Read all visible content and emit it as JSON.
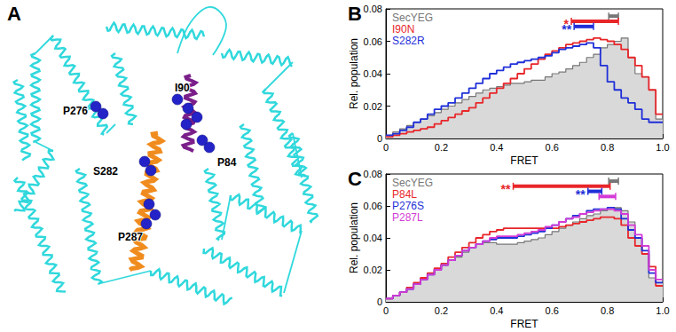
{
  "structure": {
    "title": "A",
    "labels": [
      "P276",
      "I90",
      "S282",
      "P84",
      "P287"
    ]
  },
  "chart_data": [
    {
      "type": "histogram",
      "title": "B",
      "x_label": "FRET",
      "y_label": "Rel. population",
      "bins": [
        0,
        0.025,
        0.05,
        0.075,
        0.1,
        0.125,
        0.15,
        0.175,
        0.2,
        0.225,
        0.25,
        0.275,
        0.3,
        0.325,
        0.35,
        0.375,
        0.4,
        0.425,
        0.45,
        0.475,
        0.5,
        0.525,
        0.55,
        0.575,
        0.6,
        0.625,
        0.65,
        0.675,
        0.7,
        0.725,
        0.75,
        0.775,
        0.8,
        0.825,
        0.85,
        0.875,
        0.9,
        0.925,
        0.95,
        0.975,
        1
      ],
      "xlim": [
        0,
        1
      ],
      "xticks": [
        0,
        0.2,
        0.4,
        0.6,
        0.8,
        {
          "value": 1,
          "label": "1.0"
        }
      ],
      "ylim": [
        0,
        0.08
      ],
      "yticks": [
        0,
        0.02,
        0.04,
        0.06,
        0.08
      ],
      "grid": false,
      "legend": "upper-left",
      "series": [
        {
          "name": "SecYEG",
          "type": "area",
          "color": "#777777",
          "error_bar": [
            0.805,
            0.84
          ],
          "values": [
            0.002,
            0.004,
            0.006,
            0.008,
            0.01,
            0.012,
            0.014,
            0.016,
            0.018,
            0.02,
            0.022,
            0.024,
            0.026,
            0.028,
            0.03,
            0.031,
            0.032,
            0.033,
            0.034,
            0.034,
            0.035,
            0.036,
            0.036,
            0.038,
            0.04,
            0.041,
            0.043,
            0.045,
            0.047,
            0.05,
            0.052,
            0.056,
            0.058,
            0.06,
            0.062,
            0.05,
            0.04,
            0.038,
            0.03,
            0.012
          ]
        },
        {
          "name": "I90N",
          "type": "step",
          "color": "#e8262a",
          "error_bar": [
            0.67,
            0.84
          ],
          "significance": "*",
          "values": [
            0.001,
            0.002,
            0.003,
            0.004,
            0.005,
            0.006,
            0.007,
            0.009,
            0.011,
            0.013,
            0.015,
            0.017,
            0.019,
            0.022,
            0.025,
            0.028,
            0.031,
            0.034,
            0.037,
            0.04,
            0.043,
            0.046,
            0.049,
            0.052,
            0.054,
            0.056,
            0.058,
            0.059,
            0.06,
            0.061,
            0.062,
            0.061,
            0.06,
            0.058,
            0.055,
            0.05,
            0.045,
            0.038,
            0.03,
            0.015
          ]
        },
        {
          "name": "S282R",
          "type": "step",
          "color": "#1f2fd8",
          "error_bar": [
            0.68,
            0.75
          ],
          "significance": "**",
          "values": [
            0.002,
            0.003,
            0.005,
            0.007,
            0.01,
            0.012,
            0.015,
            0.018,
            0.02,
            0.022,
            0.025,
            0.028,
            0.031,
            0.034,
            0.037,
            0.04,
            0.042,
            0.044,
            0.046,
            0.047,
            0.048,
            0.049,
            0.05,
            0.051,
            0.053,
            0.055,
            0.056,
            0.057,
            0.058,
            0.059,
            0.056,
            0.045,
            0.035,
            0.03,
            0.025,
            0.022,
            0.018,
            0.012,
            0.01,
            0.01
          ]
        }
      ]
    },
    {
      "type": "histogram",
      "title": "C",
      "x_label": "FRET",
      "y_label": "Rel. population",
      "bins": [
        0,
        0.025,
        0.05,
        0.075,
        0.1,
        0.125,
        0.15,
        0.175,
        0.2,
        0.225,
        0.25,
        0.275,
        0.3,
        0.325,
        0.35,
        0.375,
        0.4,
        0.425,
        0.45,
        0.475,
        0.5,
        0.525,
        0.55,
        0.575,
        0.6,
        0.625,
        0.65,
        0.675,
        0.7,
        0.725,
        0.75,
        0.775,
        0.8,
        0.825,
        0.85,
        0.875,
        0.9,
        0.925,
        0.95,
        0.975,
        1
      ],
      "xlim": [
        0,
        1
      ],
      "xticks": [
        0,
        0.2,
        0.4,
        0.6,
        0.8,
        {
          "value": 1,
          "label": "1.0"
        }
      ],
      "ylim": [
        0,
        0.08
      ],
      "yticks": [
        0,
        0.02,
        0.04,
        0.06,
        0.08
      ],
      "grid": false,
      "legend": "upper-left",
      "series": [
        {
          "name": "SecYEG",
          "type": "area",
          "color": "#777777",
          "error_bar": [
            0.805,
            0.84
          ],
          "values": [
            0.002,
            0.004,
            0.006,
            0.008,
            0.011,
            0.014,
            0.017,
            0.02,
            0.023,
            0.026,
            0.028,
            0.031,
            0.034,
            0.036,
            0.037,
            0.037,
            0.036,
            0.036,
            0.036,
            0.037,
            0.038,
            0.039,
            0.04,
            0.042,
            0.044,
            0.046,
            0.048,
            0.05,
            0.052,
            0.054,
            0.055,
            0.057,
            0.058,
            0.059,
            0.057,
            0.05,
            0.04,
            0.03,
            0.015,
            0.012
          ]
        },
        {
          "name": "P84L",
          "type": "step",
          "color": "#e8262a",
          "error_bar": [
            0.46,
            0.81
          ],
          "significance": "**",
          "values": [
            0.002,
            0.004,
            0.006,
            0.009,
            0.012,
            0.015,
            0.018,
            0.021,
            0.024,
            0.028,
            0.031,
            0.034,
            0.037,
            0.04,
            0.042,
            0.044,
            0.045,
            0.046,
            0.046,
            0.046,
            0.046,
            0.046,
            0.046,
            0.046,
            0.046,
            0.047,
            0.048,
            0.049,
            0.05,
            0.051,
            0.052,
            0.053,
            0.053,
            0.052,
            0.048,
            0.04,
            0.035,
            0.03,
            0.022,
            0.01
          ]
        },
        {
          "name": "P276S",
          "type": "step",
          "color": "#1f2fd8",
          "error_bar": [
            0.73,
            0.78
          ],
          "significance": "**",
          "values": [
            0.002,
            0.004,
            0.006,
            0.008,
            0.011,
            0.014,
            0.017,
            0.02,
            0.023,
            0.026,
            0.029,
            0.032,
            0.034,
            0.036,
            0.038,
            0.039,
            0.04,
            0.04,
            0.04,
            0.041,
            0.042,
            0.043,
            0.044,
            0.046,
            0.048,
            0.05,
            0.052,
            0.054,
            0.055,
            0.057,
            0.058,
            0.058,
            0.059,
            0.058,
            0.052,
            0.045,
            0.04,
            0.032,
            0.018,
            0.012
          ]
        },
        {
          "name": "P287L",
          "type": "step",
          "color": "#d43bd6",
          "error_bar": [
            0.77,
            0.83
          ],
          "values": [
            0.002,
            0.004,
            0.006,
            0.008,
            0.011,
            0.014,
            0.017,
            0.02,
            0.023,
            0.026,
            0.029,
            0.032,
            0.034,
            0.036,
            0.038,
            0.04,
            0.041,
            0.041,
            0.041,
            0.042,
            0.043,
            0.044,
            0.045,
            0.047,
            0.048,
            0.05,
            0.052,
            0.053,
            0.055,
            0.056,
            0.057,
            0.058,
            0.058,
            0.057,
            0.055,
            0.048,
            0.042,
            0.035,
            0.02,
            0.014
          ]
        }
      ]
    }
  ]
}
